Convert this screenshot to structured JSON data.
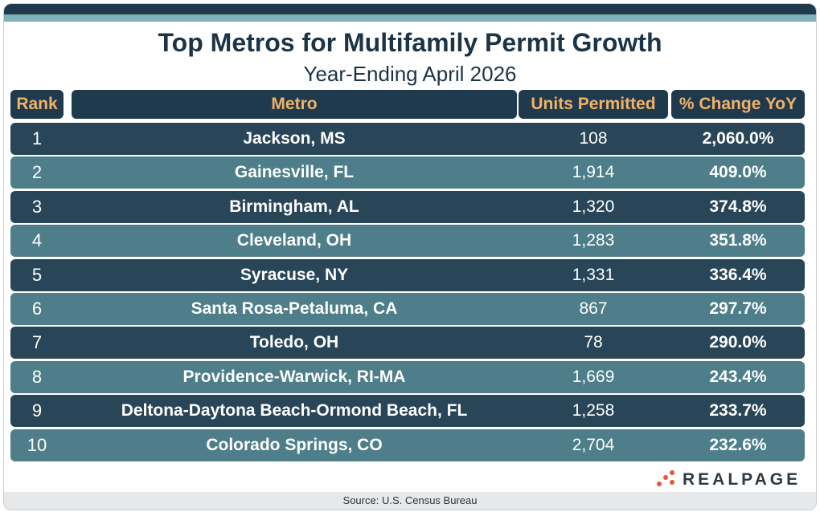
{
  "chart_data": {
    "type": "table",
    "title": "Top Metros for Multifamily Permit Growth",
    "subtitle": "Year-Ending April 2026",
    "columns": [
      "Rank",
      "Metro",
      "Units Permitted",
      "% Change YoY"
    ],
    "rows": [
      {
        "rank": "1",
        "metro": "Jackson, MS",
        "units": "108",
        "pct": "2,060.0%"
      },
      {
        "rank": "2",
        "metro": "Gainesville, FL",
        "units": "1,914",
        "pct": "409.0%"
      },
      {
        "rank": "3",
        "metro": "Birmingham, AL",
        "units": "1,320",
        "pct": "374.8%"
      },
      {
        "rank": "4",
        "metro": "Cleveland, OH",
        "units": "1,283",
        "pct": "351.8%"
      },
      {
        "rank": "5",
        "metro": "Syracuse, NY",
        "units": "1,331",
        "pct": "336.4%"
      },
      {
        "rank": "6",
        "metro": "Santa Rosa-Petaluma, CA",
        "units": "867",
        "pct": "297.7%"
      },
      {
        "rank": "7",
        "metro": "Toledo, OH",
        "units": "78",
        "pct": "290.0%"
      },
      {
        "rank": "8",
        "metro": "Providence-Warwick, RI-MA",
        "units": "1,669",
        "pct": "243.4%"
      },
      {
        "rank": "9",
        "metro": "Deltona-Daytona Beach-Ormond Beach, FL",
        "units": "1,258",
        "pct": "233.7%"
      },
      {
        "rank": "10",
        "metro": "Colorado Springs, CO",
        "units": "2,704",
        "pct": "232.6%"
      }
    ],
    "colors": {
      "header_bg": "#1f3a4d",
      "header_text": "#f2b266",
      "row_dark": "#284657",
      "row_light": "#4d7e89"
    }
  },
  "logo": {
    "text": "REALPAGE",
    "mark_color": "#e8553b"
  },
  "footer": {
    "source": "Source: U.S. Census Bureau"
  }
}
